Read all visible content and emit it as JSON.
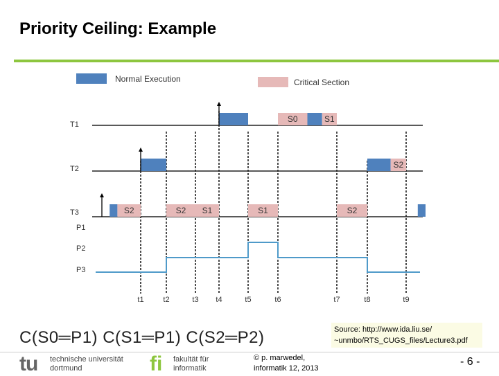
{
  "slide": {
    "title": "Priority Ceiling: Example",
    "ceilings": "C(S0═P1) C(S1═P1) C(S2═P2)",
    "source_line1": "Source: http://www.ida.liu.se/",
    "source_line2": "~unmbo/RTS_CUGS_files/Lecture3.pdf",
    "page_number": "- 6 -",
    "copyright_line1": "© p. marwedel,",
    "copyright_line2": "informatik 12,  2013"
  },
  "logos": {
    "tu_mark": "tu",
    "tu_line1": "technische universität",
    "tu_line2": "dortmund",
    "fi_mark": "fi",
    "fi_line1": "fakultät für",
    "fi_line2": "informatik"
  },
  "legend": {
    "normal": "Normal Execution",
    "critical": "Critical Section"
  },
  "colors": {
    "normal": "#4f81bd",
    "critical": "#e6b9b8",
    "accent": "#8dc63f",
    "ceiling_line": "#4f9ac9"
  },
  "timeline": {
    "tasks": [
      {
        "label": "T1",
        "segments": [
          {
            "start": 4,
            "end": 5,
            "kind": "normal",
            "label": ""
          },
          {
            "start": 6,
            "end": 6.5,
            "kind": "critical",
            "label": "S0"
          },
          {
            "start": 6.5,
            "end": 6.75,
            "kind": "normal",
            "label": ""
          },
          {
            "start": 6.75,
            "end": 7,
            "kind": "critical",
            "label": "S1"
          }
        ]
      },
      {
        "label": "T2",
        "segments": [
          {
            "start": 1,
            "end": 2,
            "kind": "normal",
            "label": ""
          },
          {
            "start": 8,
            "end": 8.6,
            "kind": "normal",
            "label": ""
          },
          {
            "start": 8.6,
            "end": 9,
            "kind": "critical",
            "label": "S2"
          }
        ]
      },
      {
        "label": "T3",
        "segments": [
          {
            "start": 0.2,
            "end": 0.4,
            "kind": "normal",
            "label": ""
          },
          {
            "start": 0.4,
            "end": 1,
            "kind": "critical",
            "label": "S2"
          },
          {
            "start": 2,
            "end": 3,
            "kind": "critical",
            "label": "S2"
          },
          {
            "start": 3,
            "end": 4,
            "kind": "critical",
            "label": "S1"
          },
          {
            "start": 5,
            "end": 6,
            "kind": "critical",
            "label": "S1"
          },
          {
            "start": 7,
            "end": 8,
            "kind": "critical",
            "label": "S2"
          },
          {
            "start": 9.3,
            "end": 9.5,
            "kind": "normal",
            "label": ""
          }
        ]
      }
    ],
    "ticks": [
      "t1",
      "t2",
      "t3",
      "t4",
      "t5",
      "t6",
      "t7",
      "t8",
      "t9"
    ],
    "arrivals": [
      {
        "task": "T1",
        "time": 4
      },
      {
        "task": "T2",
        "time": 1
      },
      {
        "task": "T3",
        "time": 0
      }
    ],
    "ceiling_levels": [
      "P1",
      "P2",
      "P3"
    ],
    "ceiling_steps": [
      {
        "start": 0,
        "end": 2,
        "level": "P3"
      },
      {
        "start": 2,
        "end": 5,
        "level": "P2"
      },
      {
        "start": 5,
        "end": 6,
        "level": "P1"
      },
      {
        "start": 6,
        "end": 8,
        "level": "P2"
      },
      {
        "start": 8,
        "end": 9.5,
        "level": "P3"
      }
    ]
  }
}
